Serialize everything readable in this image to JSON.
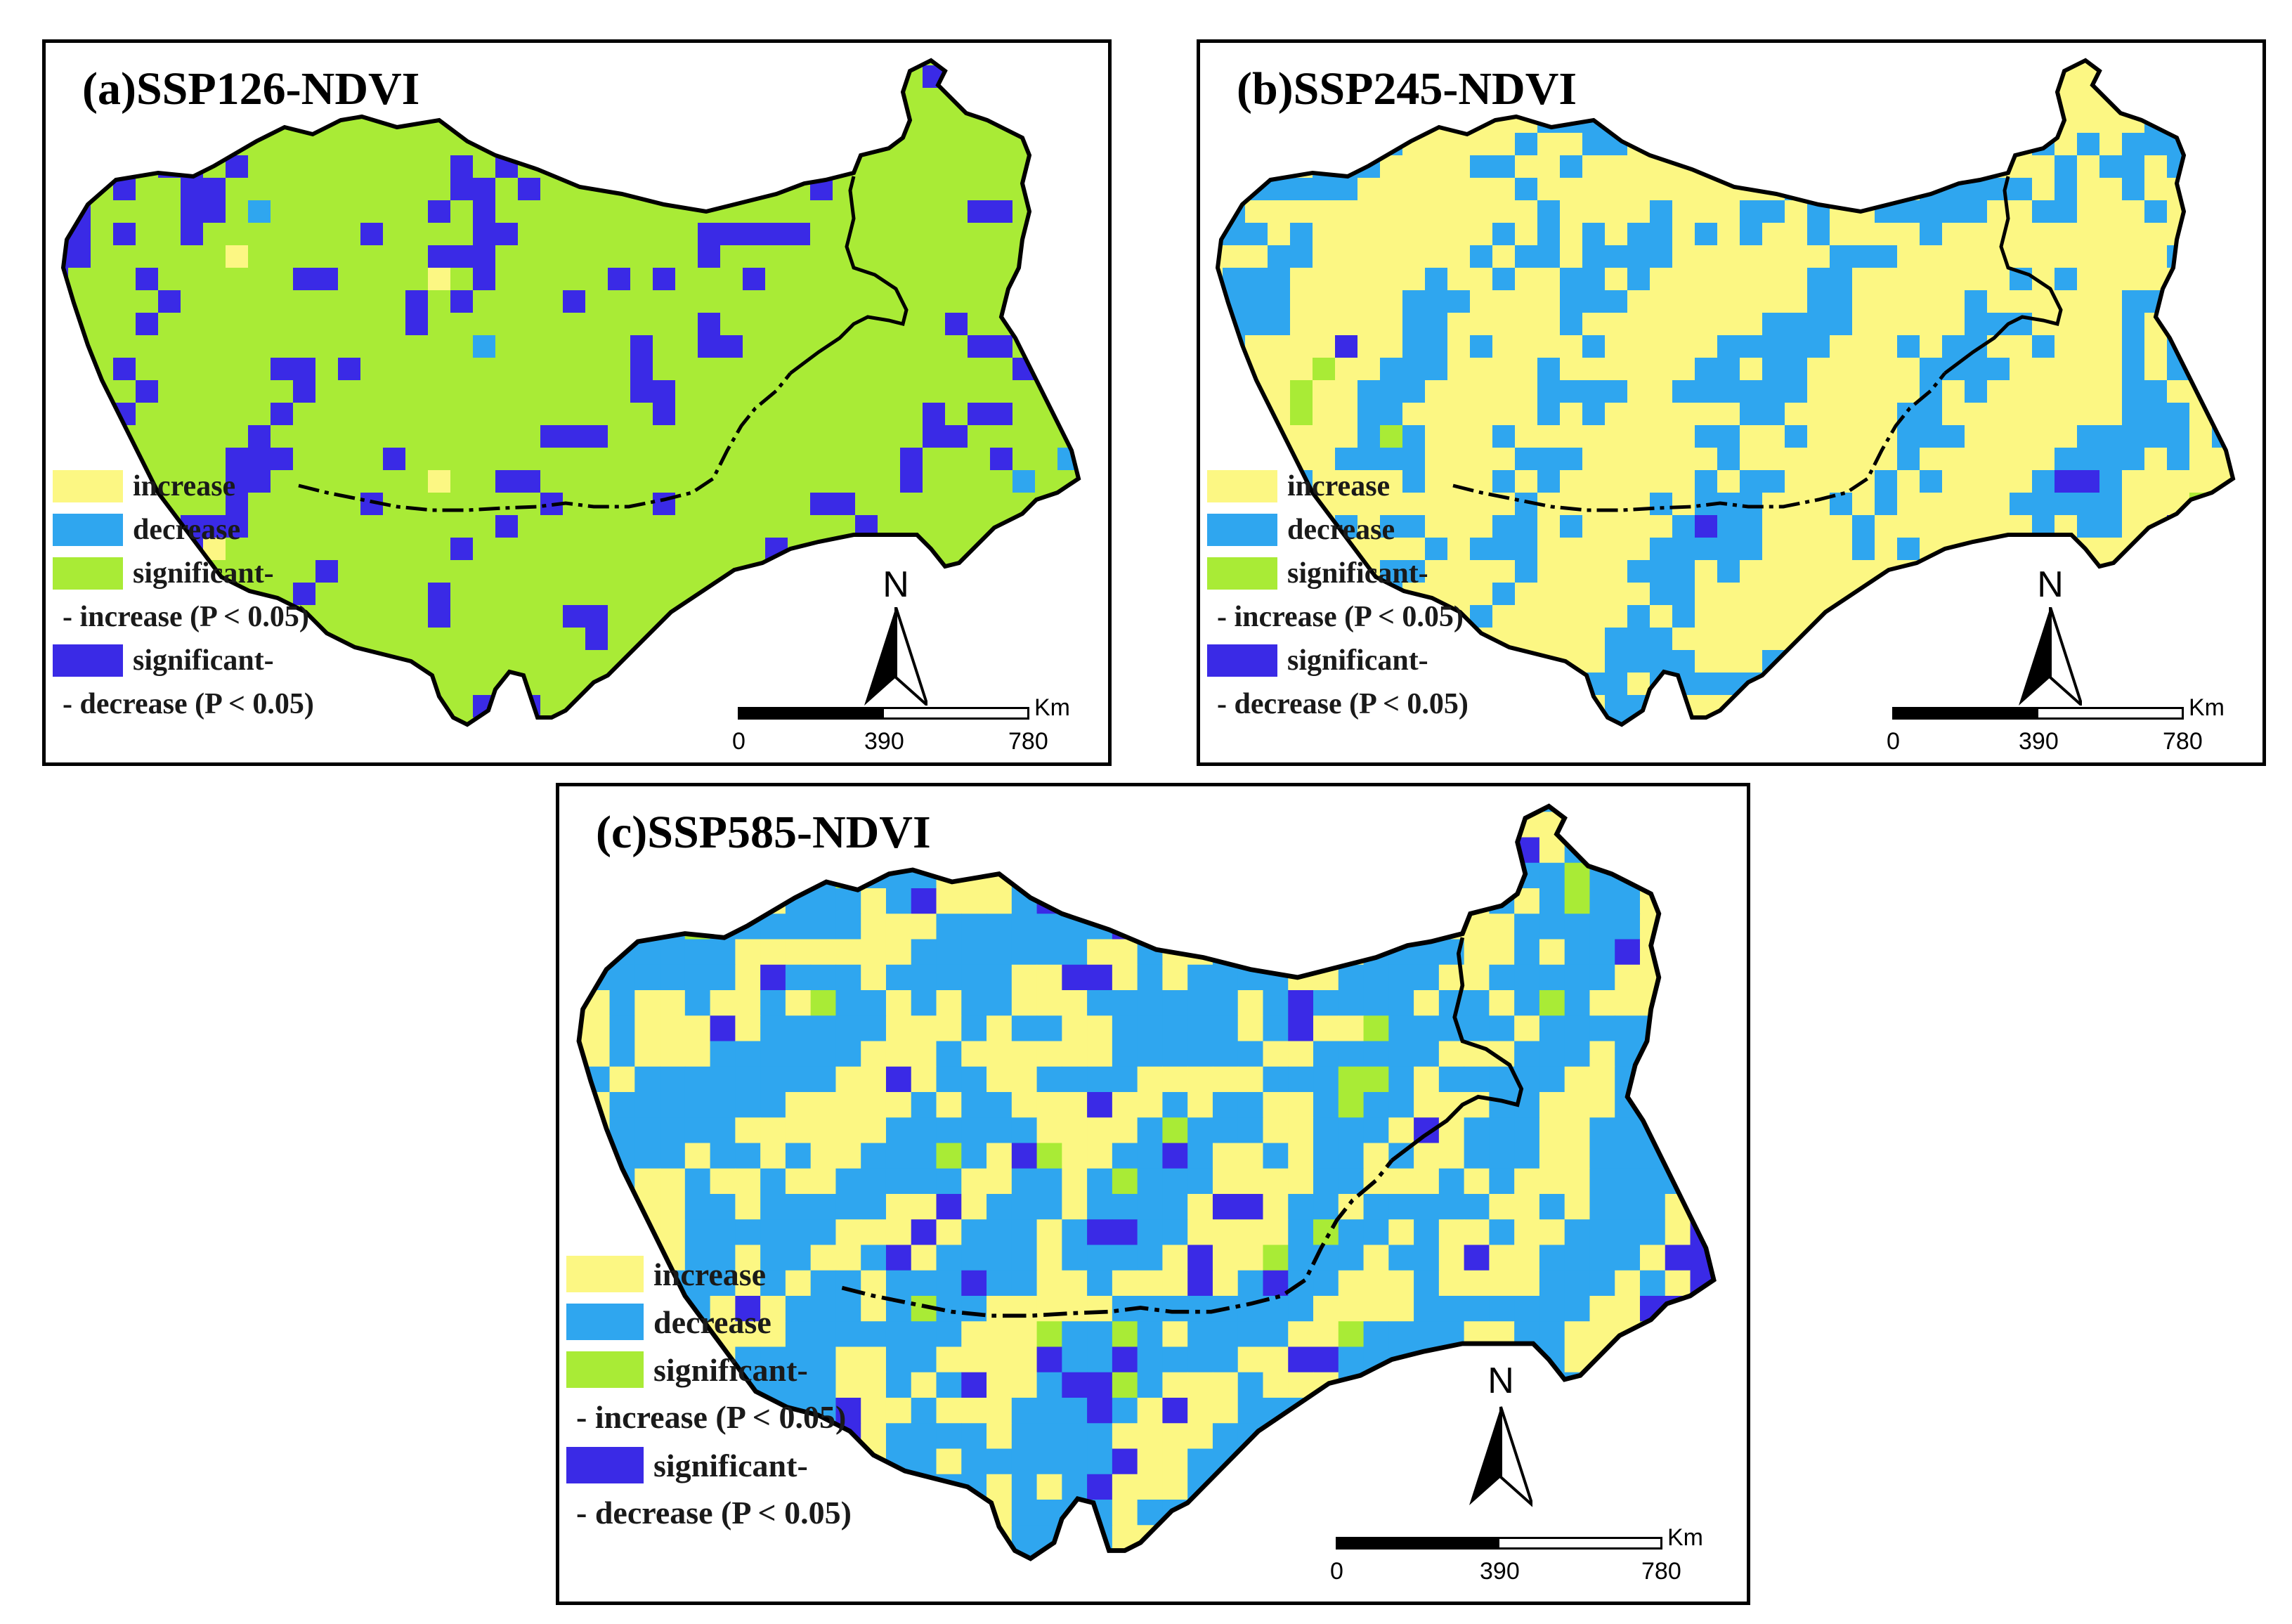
{
  "colors": {
    "increase": "#FCF783",
    "decrease": "#2FA6EF",
    "sig_increase": "#A9EB36",
    "sig_decrease": "#3A2AE6",
    "border": "#000000"
  },
  "legend": {
    "increase": "increase",
    "decrease": "decrease",
    "sig_increase_1": "significant-",
    "sig_increase_2": "- increase (P < 0.05)",
    "sig_decrease_1": "significant-",
    "sig_decrease_2": "- decrease (P < 0.05)"
  },
  "north_label": "N",
  "scale": {
    "unit": "Km",
    "ticks": [
      "0",
      "390",
      "780"
    ]
  },
  "panels": [
    {
      "id": "a",
      "title": "(a)SSP126-NDVI",
      "weights": [
        0.05,
        0.05,
        0.66,
        0.24
      ]
    },
    {
      "id": "b",
      "title": "(b)SSP245-NDVI",
      "weights": [
        0.56,
        0.38,
        0.03,
        0.03
      ]
    },
    {
      "id": "c",
      "title": "(c)SSP585-NDVI",
      "weights": [
        0.34,
        0.44,
        0.08,
        0.14
      ]
    }
  ]
}
